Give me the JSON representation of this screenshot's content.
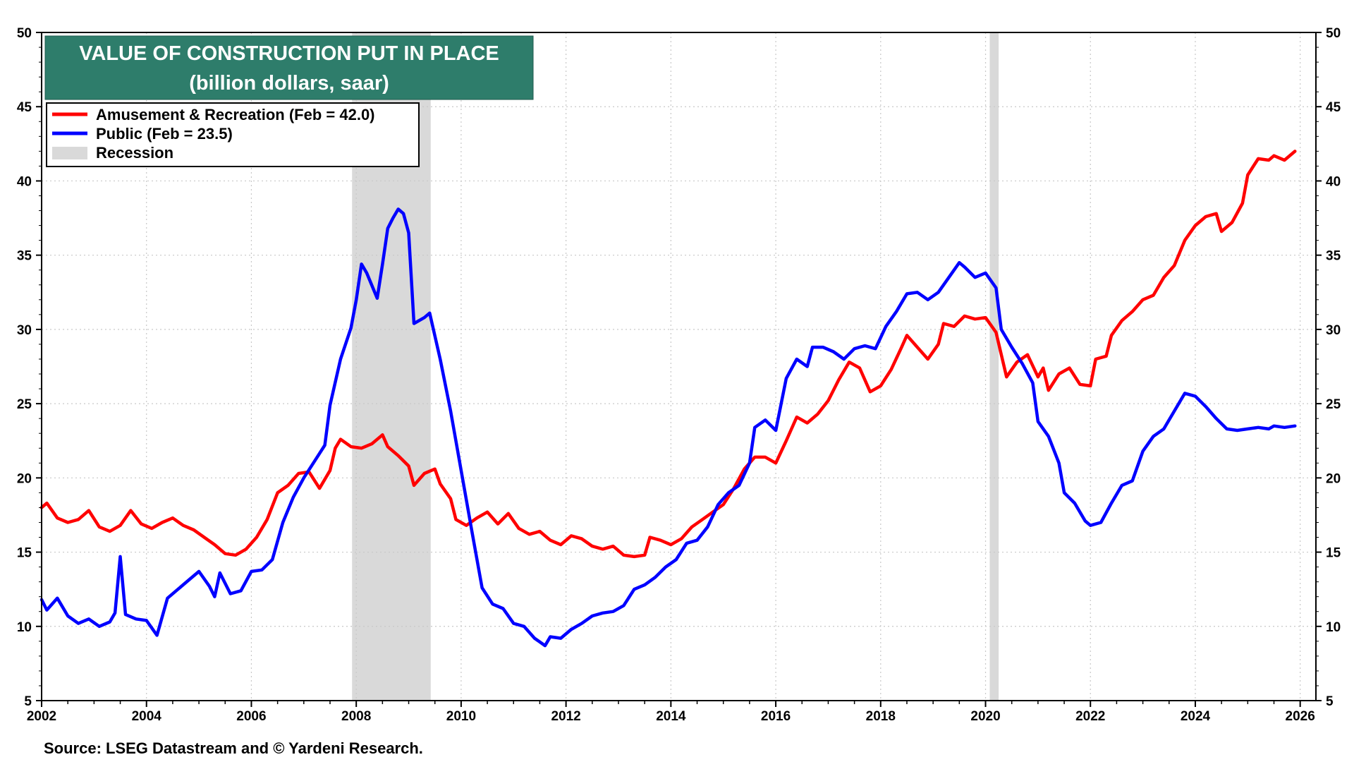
{
  "source": "Source: LSEG Datastream and © Yardeni Research.",
  "colors": {
    "series_red": "#ff0000",
    "series_blue": "#0000ff",
    "recession": "#d9d9d9",
    "title_bg": "#2e7d6b"
  },
  "chart_data": {
    "type": "line",
    "title": "VALUE OF CONSTRUCTION PUT IN PLACE",
    "subtitle": "(billion dollars, saar)",
    "xlim": [
      2002,
      2026.3
    ],
    "ylim": [
      5,
      50
    ],
    "x_ticks": [
      "2002",
      "2004",
      "2006",
      "2008",
      "2010",
      "2012",
      "2014",
      "2016",
      "2018",
      "2020",
      "2022",
      "2024",
      "2026"
    ],
    "y_ticks": [
      "5",
      "10",
      "15",
      "20",
      "25",
      "30",
      "35",
      "40",
      "45",
      "50"
    ],
    "grid": true,
    "legend_position": "top-left",
    "legend": [
      {
        "label": "Amusement & Recreation (Feb = 42.0)",
        "kind": "line",
        "color": "#ff0000"
      },
      {
        "label": "Public (Feb = 23.5)",
        "kind": "line",
        "color": "#0000ff"
      },
      {
        "label": "Recession",
        "kind": "band",
        "color": "#d9d9d9"
      }
    ],
    "recessions": [
      {
        "start": 2007.92,
        "end": 2009.42
      },
      {
        "start": 2020.08,
        "end": 2020.25
      }
    ],
    "series": [
      {
        "name": "Amusement & Recreation",
        "color": "#ff0000",
        "points": [
          [
            2002.0,
            18.0
          ],
          [
            2002.1,
            18.3
          ],
          [
            2002.3,
            17.3
          ],
          [
            2002.5,
            17.0
          ],
          [
            2002.7,
            17.2
          ],
          [
            2002.9,
            17.8
          ],
          [
            2003.1,
            16.7
          ],
          [
            2003.3,
            16.4
          ],
          [
            2003.5,
            16.8
          ],
          [
            2003.7,
            17.8
          ],
          [
            2003.9,
            16.9
          ],
          [
            2004.1,
            16.6
          ],
          [
            2004.3,
            17.0
          ],
          [
            2004.5,
            17.3
          ],
          [
            2004.7,
            16.8
          ],
          [
            2004.9,
            16.5
          ],
          [
            2005.1,
            16.0
          ],
          [
            2005.3,
            15.5
          ],
          [
            2005.5,
            14.9
          ],
          [
            2005.7,
            14.8
          ],
          [
            2005.9,
            15.2
          ],
          [
            2006.1,
            16.0
          ],
          [
            2006.3,
            17.2
          ],
          [
            2006.5,
            19.0
          ],
          [
            2006.7,
            19.5
          ],
          [
            2006.9,
            20.3
          ],
          [
            2007.1,
            20.4
          ],
          [
            2007.3,
            19.3
          ],
          [
            2007.5,
            20.5
          ],
          [
            2007.6,
            22.0
          ],
          [
            2007.7,
            22.6
          ],
          [
            2007.9,
            22.1
          ],
          [
            2008.1,
            22.0
          ],
          [
            2008.3,
            22.3
          ],
          [
            2008.5,
            22.9
          ],
          [
            2008.6,
            22.1
          ],
          [
            2008.8,
            21.5
          ],
          [
            2009.0,
            20.8
          ],
          [
            2009.1,
            19.5
          ],
          [
            2009.3,
            20.3
          ],
          [
            2009.5,
            20.6
          ],
          [
            2009.6,
            19.6
          ],
          [
            2009.8,
            18.6
          ],
          [
            2009.9,
            17.2
          ],
          [
            2010.1,
            16.8
          ],
          [
            2010.3,
            17.3
          ],
          [
            2010.5,
            17.7
          ],
          [
            2010.7,
            16.9
          ],
          [
            2010.9,
            17.6
          ],
          [
            2011.1,
            16.6
          ],
          [
            2011.3,
            16.2
          ],
          [
            2011.5,
            16.4
          ],
          [
            2011.7,
            15.8
          ],
          [
            2011.9,
            15.5
          ],
          [
            2012.1,
            16.1
          ],
          [
            2012.3,
            15.9
          ],
          [
            2012.5,
            15.4
          ],
          [
            2012.7,
            15.2
          ],
          [
            2012.9,
            15.4
          ],
          [
            2013.1,
            14.8
          ],
          [
            2013.3,
            14.7
          ],
          [
            2013.5,
            14.8
          ],
          [
            2013.6,
            16.0
          ],
          [
            2013.8,
            15.8
          ],
          [
            2014.0,
            15.5
          ],
          [
            2014.2,
            15.9
          ],
          [
            2014.4,
            16.7
          ],
          [
            2014.6,
            17.2
          ],
          [
            2014.8,
            17.7
          ],
          [
            2015.0,
            18.2
          ],
          [
            2015.2,
            19.3
          ],
          [
            2015.4,
            20.6
          ],
          [
            2015.6,
            21.4
          ],
          [
            2015.8,
            21.4
          ],
          [
            2016.0,
            21.0
          ],
          [
            2016.2,
            22.5
          ],
          [
            2016.4,
            24.1
          ],
          [
            2016.6,
            23.7
          ],
          [
            2016.8,
            24.3
          ],
          [
            2017.0,
            25.2
          ],
          [
            2017.2,
            26.6
          ],
          [
            2017.4,
            27.8
          ],
          [
            2017.6,
            27.4
          ],
          [
            2017.8,
            25.8
          ],
          [
            2018.0,
            26.2
          ],
          [
            2018.2,
            27.3
          ],
          [
            2018.4,
            28.8
          ],
          [
            2018.5,
            29.6
          ],
          [
            2018.7,
            28.8
          ],
          [
            2018.9,
            28.0
          ],
          [
            2019.1,
            29.0
          ],
          [
            2019.2,
            30.4
          ],
          [
            2019.4,
            30.2
          ],
          [
            2019.6,
            30.9
          ],
          [
            2019.8,
            30.7
          ],
          [
            2020.0,
            30.8
          ],
          [
            2020.2,
            29.8
          ],
          [
            2020.4,
            26.8
          ],
          [
            2020.6,
            27.8
          ],
          [
            2020.8,
            28.3
          ],
          [
            2021.0,
            26.8
          ],
          [
            2021.1,
            27.4
          ],
          [
            2021.2,
            25.9
          ],
          [
            2021.4,
            27.0
          ],
          [
            2021.6,
            27.4
          ],
          [
            2021.8,
            26.3
          ],
          [
            2022.0,
            26.2
          ],
          [
            2022.1,
            28.0
          ],
          [
            2022.3,
            28.2
          ],
          [
            2022.4,
            29.6
          ],
          [
            2022.6,
            30.6
          ],
          [
            2022.8,
            31.2
          ],
          [
            2023.0,
            32.0
          ],
          [
            2023.2,
            32.3
          ],
          [
            2023.4,
            33.5
          ],
          [
            2023.6,
            34.3
          ],
          [
            2023.8,
            36.0
          ],
          [
            2024.0,
            37.0
          ],
          [
            2024.2,
            37.6
          ],
          [
            2024.4,
            37.8
          ],
          [
            2024.5,
            36.6
          ],
          [
            2024.7,
            37.2
          ],
          [
            2024.9,
            38.5
          ],
          [
            2025.0,
            40.4
          ],
          [
            2025.2,
            41.5
          ],
          [
            2025.4,
            41.4
          ],
          [
            2025.5,
            41.7
          ],
          [
            2025.7,
            41.4
          ],
          [
            2025.9,
            42.0
          ]
        ]
      },
      {
        "name": "Public",
        "color": "#0000ff",
        "points": [
          [
            2002.0,
            11.8
          ],
          [
            2002.1,
            11.1
          ],
          [
            2002.3,
            11.9
          ],
          [
            2002.5,
            10.7
          ],
          [
            2002.7,
            10.2
          ],
          [
            2002.9,
            10.5
          ],
          [
            2003.1,
            10.0
          ],
          [
            2003.3,
            10.3
          ],
          [
            2003.4,
            10.9
          ],
          [
            2003.5,
            14.7
          ],
          [
            2003.6,
            10.8
          ],
          [
            2003.8,
            10.5
          ],
          [
            2004.0,
            10.4
          ],
          [
            2004.2,
            9.4
          ],
          [
            2004.4,
            11.9
          ],
          [
            2004.6,
            12.5
          ],
          [
            2004.8,
            13.1
          ],
          [
            2005.0,
            13.7
          ],
          [
            2005.2,
            12.7
          ],
          [
            2005.3,
            12.0
          ],
          [
            2005.4,
            13.6
          ],
          [
            2005.6,
            12.2
          ],
          [
            2005.8,
            12.4
          ],
          [
            2006.0,
            13.7
          ],
          [
            2006.2,
            13.8
          ],
          [
            2006.4,
            14.5
          ],
          [
            2006.6,
            17.0
          ],
          [
            2006.8,
            18.7
          ],
          [
            2007.0,
            20.0
          ],
          [
            2007.2,
            21.1
          ],
          [
            2007.4,
            22.2
          ],
          [
            2007.5,
            24.9
          ],
          [
            2007.7,
            28.0
          ],
          [
            2007.9,
            30.1
          ],
          [
            2008.0,
            32.0
          ],
          [
            2008.1,
            34.4
          ],
          [
            2008.2,
            33.8
          ],
          [
            2008.4,
            32.1
          ],
          [
            2008.5,
            34.4
          ],
          [
            2008.6,
            36.8
          ],
          [
            2008.7,
            37.5
          ],
          [
            2008.8,
            38.1
          ],
          [
            2008.9,
            37.8
          ],
          [
            2009.0,
            36.5
          ],
          [
            2009.1,
            30.4
          ],
          [
            2009.3,
            30.8
          ],
          [
            2009.4,
            31.1
          ],
          [
            2009.6,
            28.0
          ],
          [
            2009.8,
            24.5
          ],
          [
            2010.0,
            20.5
          ],
          [
            2010.2,
            16.5
          ],
          [
            2010.4,
            12.6
          ],
          [
            2010.6,
            11.5
          ],
          [
            2010.8,
            11.2
          ],
          [
            2011.0,
            10.2
          ],
          [
            2011.2,
            10.0
          ],
          [
            2011.4,
            9.2
          ],
          [
            2011.6,
            8.7
          ],
          [
            2011.7,
            9.3
          ],
          [
            2011.9,
            9.2
          ],
          [
            2012.1,
            9.8
          ],
          [
            2012.3,
            10.2
          ],
          [
            2012.5,
            10.7
          ],
          [
            2012.7,
            10.9
          ],
          [
            2012.9,
            11.0
          ],
          [
            2013.1,
            11.4
          ],
          [
            2013.3,
            12.5
          ],
          [
            2013.5,
            12.8
          ],
          [
            2013.7,
            13.3
          ],
          [
            2013.9,
            14.0
          ],
          [
            2014.1,
            14.5
          ],
          [
            2014.3,
            15.6
          ],
          [
            2014.5,
            15.8
          ],
          [
            2014.7,
            16.7
          ],
          [
            2014.9,
            18.2
          ],
          [
            2015.1,
            19.0
          ],
          [
            2015.3,
            19.5
          ],
          [
            2015.5,
            21.0
          ],
          [
            2015.6,
            23.4
          ],
          [
            2015.8,
            23.9
          ],
          [
            2016.0,
            23.2
          ],
          [
            2016.2,
            26.7
          ],
          [
            2016.4,
            28.0
          ],
          [
            2016.6,
            27.5
          ],
          [
            2016.7,
            28.8
          ],
          [
            2016.9,
            28.8
          ],
          [
            2017.1,
            28.5
          ],
          [
            2017.3,
            28.0
          ],
          [
            2017.5,
            28.7
          ],
          [
            2017.7,
            28.9
          ],
          [
            2017.9,
            28.7
          ],
          [
            2018.1,
            30.2
          ],
          [
            2018.3,
            31.2
          ],
          [
            2018.5,
            32.4
          ],
          [
            2018.7,
            32.5
          ],
          [
            2018.9,
            32.0
          ],
          [
            2019.1,
            32.5
          ],
          [
            2019.3,
            33.5
          ],
          [
            2019.5,
            34.5
          ],
          [
            2019.6,
            34.2
          ],
          [
            2019.8,
            33.5
          ],
          [
            2020.0,
            33.8
          ],
          [
            2020.2,
            32.8
          ],
          [
            2020.3,
            30.0
          ],
          [
            2020.5,
            28.8
          ],
          [
            2020.7,
            27.7
          ],
          [
            2020.9,
            26.4
          ],
          [
            2021.0,
            23.8
          ],
          [
            2021.2,
            22.8
          ],
          [
            2021.4,
            21.0
          ],
          [
            2021.5,
            19.0
          ],
          [
            2021.7,
            18.3
          ],
          [
            2021.9,
            17.1
          ],
          [
            2022.0,
            16.8
          ],
          [
            2022.2,
            17.0
          ],
          [
            2022.4,
            18.3
          ],
          [
            2022.6,
            19.5
          ],
          [
            2022.8,
            19.8
          ],
          [
            2023.0,
            21.8
          ],
          [
            2023.2,
            22.8
          ],
          [
            2023.4,
            23.3
          ],
          [
            2023.6,
            24.5
          ],
          [
            2023.8,
            25.7
          ],
          [
            2024.0,
            25.5
          ],
          [
            2024.2,
            24.8
          ],
          [
            2024.4,
            24.0
          ],
          [
            2024.6,
            23.3
          ],
          [
            2024.8,
            23.2
          ],
          [
            2025.0,
            23.3
          ],
          [
            2025.2,
            23.4
          ],
          [
            2025.4,
            23.3
          ],
          [
            2025.5,
            23.5
          ],
          [
            2025.7,
            23.4
          ],
          [
            2025.9,
            23.5
          ]
        ]
      }
    ]
  }
}
